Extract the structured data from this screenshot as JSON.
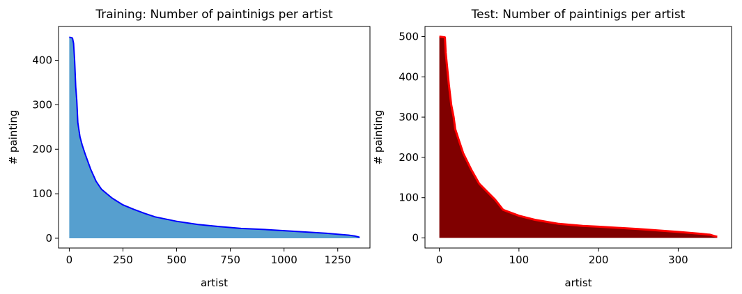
{
  "chart_data": [
    {
      "type": "area",
      "title": "Training: Number of paintinigs per artist",
      "xlabel": "artist",
      "ylabel": "# painting",
      "xlim": [
        -50,
        1400
      ],
      "ylim": [
        -22,
        476
      ],
      "xticks": [
        0,
        250,
        500,
        750,
        1000,
        1250
      ],
      "xtick_labels": [
        "0",
        "250",
        "500",
        "750",
        "1000",
        "1250"
      ],
      "yticks": [
        0,
        100,
        200,
        300,
        400
      ],
      "ytick_labels": [
        "0",
        "100",
        "200",
        "300",
        "400"
      ],
      "line_color": "#0000ff",
      "fill_color": "#569fcf",
      "grid": false,
      "series": [
        {
          "x": [
            0,
            15,
            20,
            25,
            30,
            35,
            40,
            50,
            60,
            75,
            100,
            125,
            150,
            175,
            200,
            250,
            300,
            350,
            400,
            500,
            600,
            700,
            800,
            900,
            1000,
            1100,
            1200,
            1250,
            1300,
            1330,
            1345,
            1352
          ],
          "values": [
            452,
            450,
            438,
            400,
            340,
            310,
            260,
            228,
            210,
            188,
            155,
            128,
            110,
            100,
            90,
            75,
            65,
            56,
            48,
            38,
            31,
            26,
            22,
            20,
            17,
            14,
            11,
            9,
            7,
            5,
            3,
            2
          ]
        }
      ]
    },
    {
      "type": "area",
      "title": "Test: Number of paintinigs per artist",
      "xlabel": "artist",
      "ylabel": "# painting",
      "xlim": [
        -18,
        367
      ],
      "ylim": [
        -25,
        525
      ],
      "xticks": [
        0,
        100,
        200,
        300
      ],
      "xtick_labels": [
        "0",
        "100",
        "200",
        "300"
      ],
      "yticks": [
        0,
        100,
        200,
        300,
        400,
        500
      ],
      "ytick_labels": [
        "0",
        "100",
        "200",
        "300",
        "400",
        "500"
      ],
      "line_color": "#ff0000",
      "fill_color": "#800000",
      "grid": false,
      "series": [
        {
          "x": [
            0,
            7,
            8,
            10,
            12,
            15,
            18,
            20,
            25,
            30,
            40,
            50,
            60,
            70,
            80,
            100,
            120,
            150,
            180,
            200,
            250,
            300,
            330,
            340,
            345,
            349
          ],
          "values": [
            500,
            498,
            460,
            420,
            380,
            330,
            300,
            270,
            240,
            210,
            170,
            135,
            115,
            95,
            70,
            55,
            45,
            35,
            30,
            28,
            22,
            15,
            10,
            8,
            5,
            3
          ]
        }
      ]
    }
  ]
}
